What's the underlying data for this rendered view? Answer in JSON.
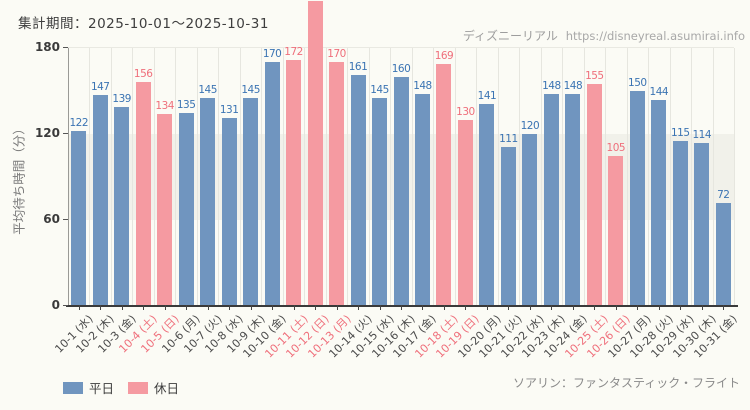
{
  "page": {
    "title": "集計期間：2025-10-01～2025-10-31",
    "watermark_brand": "ディズニーリアル",
    "watermark_url": "https://disneyreal.asumirai.info",
    "footer_attraction": "ソアリン：ファンタスティック・フライト"
  },
  "colors": {
    "weekday_bar": "#7095bf",
    "holiday_bar": "#f59aa1",
    "weekday_value_label": "#3b74b3",
    "holiday_value_label": "#ef6f7b",
    "weekday_axis_label": "#4a4a4a",
    "holiday_axis_label": "#ef6f7b"
  },
  "chart_data": {
    "type": "bar",
    "title": "集計期間：2025-10-01～2025-10-31",
    "xlabel": "",
    "ylabel": "平均待ち時間（分）",
    "ylim": [
      0,
      180
    ],
    "yticks": [
      0,
      60,
      120,
      180
    ],
    "grid": "vertical gridlines per day; shaded horizontal band between 60 and 120",
    "legend_position": "bottom-left",
    "legend": [
      {
        "label": "平日",
        "series": "weekday"
      },
      {
        "label": "休日",
        "series": "holiday"
      }
    ],
    "points": [
      {
        "date": "10-1 (水)",
        "day_type": "weekday",
        "value": 122
      },
      {
        "date": "10-2 (木)",
        "day_type": "weekday",
        "value": 147
      },
      {
        "date": "10-3 (金)",
        "day_type": "weekday",
        "value": 139
      },
      {
        "date": "10-4 (土)",
        "day_type": "holiday",
        "value": 156
      },
      {
        "date": "10-5 (日)",
        "day_type": "holiday",
        "value": 134
      },
      {
        "date": "10-6 (月)",
        "day_type": "weekday",
        "value": 135
      },
      {
        "date": "10-7 (火)",
        "day_type": "weekday",
        "value": 145
      },
      {
        "date": "10-8 (水)",
        "day_type": "weekday",
        "value": 131
      },
      {
        "date": "10-9 (木)",
        "day_type": "weekday",
        "value": 145
      },
      {
        "date": "10-10 (金)",
        "day_type": "weekday",
        "value": 170
      },
      {
        "date": "10-11 (土)",
        "day_type": "holiday",
        "value": 172
      },
      {
        "date": "10-12 (日)",
        "day_type": "holiday",
        "value": null,
        "clipped": true
      },
      {
        "date": "10-13 (月)",
        "day_type": "holiday",
        "value": 170
      },
      {
        "date": "10-14 (火)",
        "day_type": "weekday",
        "value": 161
      },
      {
        "date": "10-15 (水)",
        "day_type": "weekday",
        "value": 145
      },
      {
        "date": "10-16 (木)",
        "day_type": "weekday",
        "value": 160
      },
      {
        "date": "10-17 (金)",
        "day_type": "weekday",
        "value": 148
      },
      {
        "date": "10-18 (土)",
        "day_type": "holiday",
        "value": 169
      },
      {
        "date": "10-19 (日)",
        "day_type": "holiday",
        "value": 130
      },
      {
        "date": "10-20 (月)",
        "day_type": "weekday",
        "value": 141
      },
      {
        "date": "10-21 (火)",
        "day_type": "weekday",
        "value": 111
      },
      {
        "date": "10-22 (水)",
        "day_type": "weekday",
        "value": 120
      },
      {
        "date": "10-23 (木)",
        "day_type": "weekday",
        "value": 148
      },
      {
        "date": "10-24 (金)",
        "day_type": "weekday",
        "value": 148
      },
      {
        "date": "10-25 (土)",
        "day_type": "holiday",
        "value": 155
      },
      {
        "date": "10-26 (日)",
        "day_type": "holiday",
        "value": 105
      },
      {
        "date": "10-27 (月)",
        "day_type": "weekday",
        "value": 150
      },
      {
        "date": "10-28 (火)",
        "day_type": "weekday",
        "value": 144
      },
      {
        "date": "10-29 (水)",
        "day_type": "weekday",
        "value": 115
      },
      {
        "date": "10-30 (木)",
        "day_type": "weekday",
        "value": 114
      },
      {
        "date": "10-31 (金)",
        "day_type": "weekday",
        "value": 72
      }
    ]
  }
}
